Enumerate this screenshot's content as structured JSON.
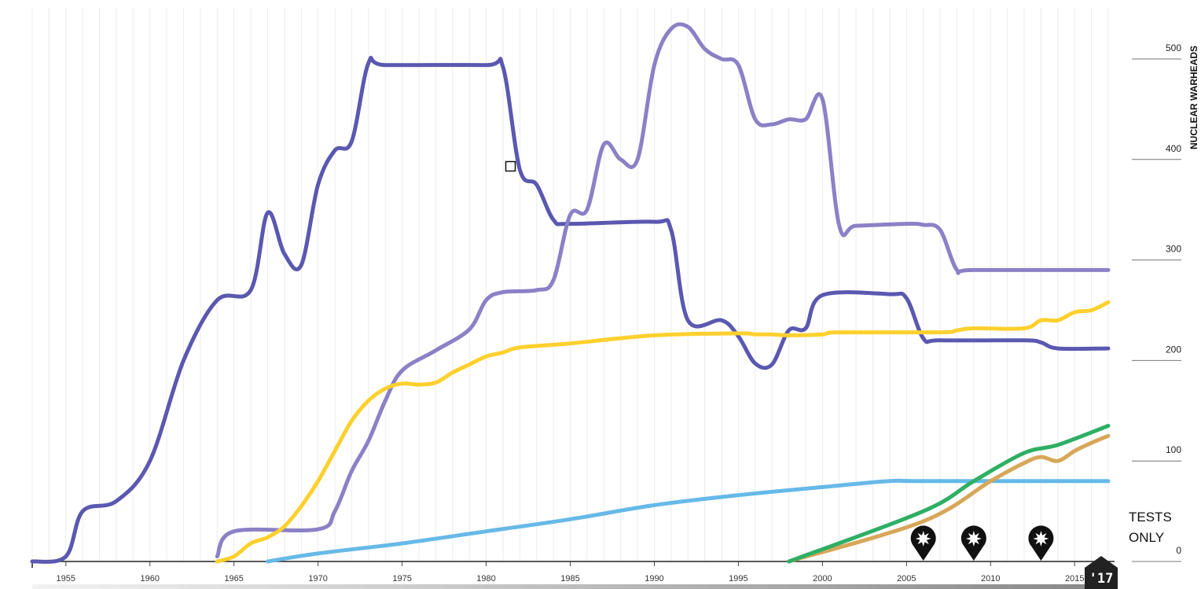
{
  "chart_data": {
    "type": "line",
    "ylabel": "NUCLEAR WARHEADS",
    "xlim": [
      1953,
      2017
    ],
    "ylim": [
      0,
      500
    ],
    "x_ticks": [
      1955,
      1960,
      1965,
      1970,
      1975,
      1980,
      1985,
      1990,
      1995,
      2000,
      2005,
      2010,
      2015
    ],
    "y_ticks": [
      0,
      100,
      200,
      300,
      400,
      500
    ],
    "grid": "vertical yearly lines",
    "current_year_badge": "'17",
    "tests_only_label": [
      "TESTS",
      "ONLY"
    ],
    "test_markers": [
      2006,
      2009,
      2013
    ],
    "series": [
      {
        "color": "#5a58b0",
        "points": [
          [
            1953,
            0
          ],
          [
            1955,
            5
          ],
          [
            1956,
            50
          ],
          [
            1958,
            60
          ],
          [
            1960,
            100
          ],
          [
            1962,
            200
          ],
          [
            1964,
            260
          ],
          [
            1966,
            270
          ],
          [
            1967,
            347
          ],
          [
            1968,
            306
          ],
          [
            1969,
            295
          ],
          [
            1970,
            375
          ],
          [
            1971,
            409
          ],
          [
            1972,
            418
          ],
          [
            1973,
            496
          ],
          [
            1974,
            494
          ],
          [
            1980,
            494
          ],
          [
            1981,
            492
          ],
          [
            1982,
            390
          ],
          [
            1983,
            375
          ],
          [
            1984,
            340
          ],
          [
            1985,
            336
          ],
          [
            1990,
            338
          ],
          [
            1991,
            330
          ],
          [
            1992,
            240
          ],
          [
            1994,
            240
          ],
          [
            1995,
            224
          ],
          [
            1996,
            197
          ],
          [
            1997,
            196
          ],
          [
            1998,
            230
          ],
          [
            1999,
            232
          ],
          [
            2000,
            265
          ],
          [
            2004,
            266
          ],
          [
            2005,
            262
          ],
          [
            2006,
            222
          ],
          [
            2007,
            220
          ],
          [
            2012,
            220
          ],
          [
            2013,
            218
          ],
          [
            2014,
            212
          ],
          [
            2017,
            212
          ]
        ]
      },
      {
        "color": "#8a81c6",
        "points": [
          [
            1964,
            5
          ],
          [
            1965,
            30
          ],
          [
            1970,
            32
          ],
          [
            1971,
            50
          ],
          [
            1972,
            90
          ],
          [
            1973,
            120
          ],
          [
            1974,
            160
          ],
          [
            1975,
            190
          ],
          [
            1977,
            210
          ],
          [
            1979,
            231
          ],
          [
            1980,
            260
          ],
          [
            1981,
            268
          ],
          [
            1983,
            270
          ],
          [
            1984,
            280
          ],
          [
            1985,
            345
          ],
          [
            1986,
            350
          ],
          [
            1987,
            415
          ],
          [
            1988,
            400
          ],
          [
            1989,
            400
          ],
          [
            1990,
            494
          ],
          [
            1991,
            530
          ],
          [
            1992,
            532
          ],
          [
            1993,
            510
          ],
          [
            1994,
            500
          ],
          [
            1995,
            494
          ],
          [
            1996,
            440
          ],
          [
            1997,
            435
          ],
          [
            1998,
            440
          ],
          [
            1999,
            440
          ],
          [
            2000,
            460
          ],
          [
            2001,
            334
          ],
          [
            2002,
            334
          ],
          [
            2005,
            336
          ],
          [
            2006,
            335
          ],
          [
            2007,
            330
          ],
          [
            2008,
            290
          ],
          [
            2009,
            290
          ],
          [
            2017,
            290
          ]
        ]
      },
      {
        "color": "#fdd02d",
        "points": [
          [
            1964,
            0
          ],
          [
            1965,
            5
          ],
          [
            1966,
            18
          ],
          [
            1967,
            24
          ],
          [
            1968,
            35
          ],
          [
            1969,
            55
          ],
          [
            1970,
            80
          ],
          [
            1971,
            110
          ],
          [
            1972,
            140
          ],
          [
            1973,
            160
          ],
          [
            1974,
            172
          ],
          [
            1975,
            177
          ],
          [
            1976,
            176
          ],
          [
            1977,
            178
          ],
          [
            1978,
            188
          ],
          [
            1979,
            196
          ],
          [
            1980,
            204
          ],
          [
            1981,
            208
          ],
          [
            1982,
            213
          ],
          [
            1985,
            217
          ],
          [
            1990,
            225
          ],
          [
            1995,
            227
          ],
          [
            1996,
            226
          ],
          [
            1997,
            226
          ],
          [
            1998,
            225
          ],
          [
            2000,
            226
          ],
          [
            2001,
            228
          ],
          [
            2007,
            228
          ],
          [
            2008,
            230
          ],
          [
            2009,
            232
          ],
          [
            2012,
            232
          ],
          [
            2013,
            240
          ],
          [
            2014,
            240
          ],
          [
            2015,
            248
          ],
          [
            2016,
            250
          ],
          [
            2017,
            258
          ]
        ]
      },
      {
        "color": "#66b9e8",
        "points": [
          [
            1967,
            0
          ],
          [
            1970,
            8
          ],
          [
            1975,
            18
          ],
          [
            1980,
            30
          ],
          [
            1985,
            42
          ],
          [
            1990,
            56
          ],
          [
            1995,
            66
          ],
          [
            2000,
            74
          ],
          [
            2004,
            80
          ],
          [
            2006,
            80
          ],
          [
            2017,
            80
          ]
        ]
      },
      {
        "color": "#d7a759",
        "points": [
          [
            1998,
            0
          ],
          [
            2006,
            40
          ],
          [
            2010,
            80
          ],
          [
            2012,
            98
          ],
          [
            2013,
            104
          ],
          [
            2014,
            100
          ],
          [
            2015,
            110
          ],
          [
            2016,
            118
          ],
          [
            2017,
            125
          ]
        ]
      },
      {
        "color": "#2eaf64",
        "points": [
          [
            1998,
            0
          ],
          [
            2006,
            50
          ],
          [
            2009,
            80
          ],
          [
            2012,
            108
          ],
          [
            2014,
            116
          ],
          [
            2017,
            135
          ]
        ]
      }
    ]
  }
}
